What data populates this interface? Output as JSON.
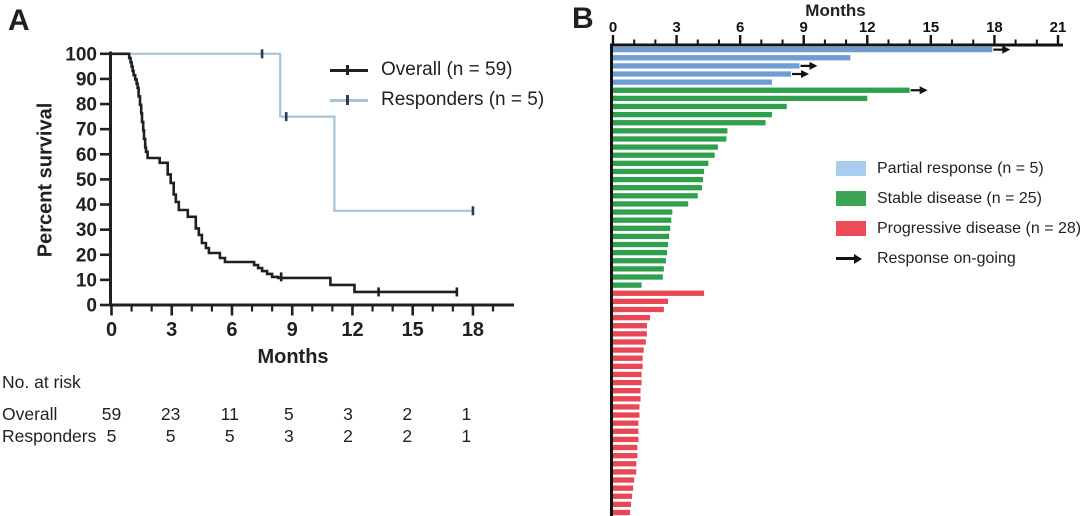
{
  "panels": {
    "a_label": "A",
    "b_label": "B"
  },
  "chart_data": [
    {
      "panel": "A",
      "type": "line",
      "subtype": "kaplan_meier_step",
      "title": "",
      "xlabel": "Months",
      "ylabel": "Percent survival",
      "xlim": [
        0,
        20
      ],
      "ylim": [
        0,
        100
      ],
      "xticks": [
        0,
        3,
        6,
        9,
        12,
        15,
        18
      ],
      "yticks": [
        0,
        10,
        20,
        30,
        40,
        50,
        60,
        70,
        80,
        90,
        100
      ],
      "minor_x_tick_step": 1,
      "grid": false,
      "legend_position": "inside-upper-right",
      "series": [
        {
          "name": "Overall (n = 59)",
          "color": "#231f20",
          "censor_color": "#231f20",
          "steps": [
            [
              0,
              100
            ],
            [
              0.88,
              100
            ],
            [
              0.88,
              98.3
            ],
            [
              0.95,
              98.3
            ],
            [
              0.95,
              96.6
            ],
            [
              1.0,
              96.6
            ],
            [
              1.0,
              94.9
            ],
            [
              1.05,
              94.9
            ],
            [
              1.05,
              93.2
            ],
            [
              1.1,
              93.2
            ],
            [
              1.1,
              91.5
            ],
            [
              1.18,
              91.5
            ],
            [
              1.18,
              89.8
            ],
            [
              1.25,
              89.8
            ],
            [
              1.25,
              88.1
            ],
            [
              1.3,
              88.1
            ],
            [
              1.3,
              86.4
            ],
            [
              1.35,
              86.4
            ],
            [
              1.35,
              83.1
            ],
            [
              1.42,
              83.1
            ],
            [
              1.42,
              79.7
            ],
            [
              1.48,
              79.7
            ],
            [
              1.48,
              76.3
            ],
            [
              1.52,
              76.3
            ],
            [
              1.52,
              72.9
            ],
            [
              1.58,
              72.9
            ],
            [
              1.58,
              69.5
            ],
            [
              1.62,
              69.5
            ],
            [
              1.62,
              66.1
            ],
            [
              1.68,
              66.1
            ],
            [
              1.68,
              62.7
            ],
            [
              1.72,
              62.7
            ],
            [
              1.72,
              61.0
            ],
            [
              1.8,
              61.0
            ],
            [
              1.8,
              58.5
            ],
            [
              2.4,
              58.5
            ],
            [
              2.4,
              56.6
            ],
            [
              2.8,
              56.6
            ],
            [
              2.8,
              52.0
            ],
            [
              2.95,
              52.0
            ],
            [
              2.95,
              48.6
            ],
            [
              3.1,
              48.6
            ],
            [
              3.1,
              44.0
            ],
            [
              3.2,
              44.0
            ],
            [
              3.2,
              41.0
            ],
            [
              3.35,
              41.0
            ],
            [
              3.35,
              37.8
            ],
            [
              3.8,
              37.8
            ],
            [
              3.8,
              35.1
            ],
            [
              4.2,
              35.1
            ],
            [
              4.2,
              30.5
            ],
            [
              4.35,
              30.5
            ],
            [
              4.35,
              27.9
            ],
            [
              4.5,
              27.9
            ],
            [
              4.5,
              24.7
            ],
            [
              4.7,
              24.7
            ],
            [
              4.7,
              22.7
            ],
            [
              4.85,
              22.7
            ],
            [
              4.85,
              20.7
            ],
            [
              5.4,
              20.7
            ],
            [
              5.4,
              18.7
            ],
            [
              5.65,
              18.7
            ],
            [
              5.65,
              17.1
            ],
            [
              7.1,
              17.1
            ],
            [
              7.1,
              15.9
            ],
            [
              7.3,
              15.9
            ],
            [
              7.3,
              14.7
            ],
            [
              7.5,
              14.7
            ],
            [
              7.5,
              13.5
            ],
            [
              7.75,
              13.5
            ],
            [
              7.75,
              12.4
            ],
            [
              8.0,
              12.4
            ],
            [
              8.0,
              11.2
            ],
            [
              8.3,
              11.2
            ],
            [
              8.3,
              10.8
            ],
            [
              10.9,
              10.8
            ],
            [
              10.9,
              8.0
            ],
            [
              12.1,
              8.0
            ],
            [
              12.1,
              5.2
            ],
            [
              17.2,
              5.2
            ]
          ],
          "censor_marks": [
            [
              8.45,
              11.2
            ],
            [
              13.3,
              5.2
            ],
            [
              17.2,
              5.2
            ]
          ]
        },
        {
          "name": "Responders (n = 5)",
          "color": "#a5c4db",
          "censor_color": "#2e3a52",
          "steps": [
            [
              0,
              100
            ],
            [
              8.4,
              100
            ],
            [
              8.4,
              75
            ],
            [
              11.1,
              75
            ],
            [
              11.1,
              37.5
            ],
            [
              18,
              37.5
            ]
          ],
          "censor_marks": [
            [
              7.5,
              100
            ],
            [
              8.7,
              75
            ],
            [
              18,
              37.5
            ]
          ]
        }
      ],
      "risk_table": {
        "title": "No. at risk",
        "timepoints": [
          0,
          3,
          6,
          9,
          12,
          15,
          18
        ],
        "rows": [
          {
            "label": "Overall",
            "values": [
              "59",
              "23",
              "11",
              "5",
              "3",
              "2",
              "1"
            ]
          },
          {
            "label": "Responders",
            "values": [
              "5",
              "5",
              "5",
              "3",
              "2",
              "2",
              "1"
            ]
          }
        ]
      }
    },
    {
      "panel": "B",
      "type": "bar",
      "subtype": "swimmer_horizontal",
      "title": "",
      "xlabel": "Months",
      "axis_side": "top",
      "xlim": [
        0,
        21
      ],
      "xticks": [
        0,
        3,
        6,
        9,
        12,
        15,
        18,
        21
      ],
      "minor_x_tick_step": 1,
      "ongoing_label": "Response on-going",
      "arrow_color": "#121212",
      "groups": [
        {
          "name": "Partial response (n = 5)",
          "bar_color": "#6f9cd2",
          "legend_color": "#a9cdee",
          "bars": [
            {
              "months": 17.9,
              "ongoing": true
            },
            {
              "months": 11.2,
              "ongoing": false
            },
            {
              "months": 8.8,
              "ongoing": true
            },
            {
              "months": 8.4,
              "ongoing": true
            },
            {
              "months": 7.5,
              "ongoing": false
            }
          ]
        },
        {
          "name": "Stable disease (n = 25)",
          "bar_color": "#2ea04c",
          "legend_color": "#3aa655",
          "bars": [
            {
              "months": 14.0,
              "ongoing": true
            },
            {
              "months": 12.0,
              "ongoing": false
            },
            {
              "months": 8.2,
              "ongoing": false
            },
            {
              "months": 7.5,
              "ongoing": false
            },
            {
              "months": 7.2,
              "ongoing": false
            },
            {
              "months": 5.4,
              "ongoing": false
            },
            {
              "months": 5.35,
              "ongoing": false
            },
            {
              "months": 4.95,
              "ongoing": false
            },
            {
              "months": 4.8,
              "ongoing": false
            },
            {
              "months": 4.5,
              "ongoing": false
            },
            {
              "months": 4.3,
              "ongoing": false
            },
            {
              "months": 4.25,
              "ongoing": false
            },
            {
              "months": 4.2,
              "ongoing": false
            },
            {
              "months": 4.0,
              "ongoing": false
            },
            {
              "months": 3.55,
              "ongoing": false
            },
            {
              "months": 2.8,
              "ongoing": false
            },
            {
              "months": 2.75,
              "ongoing": false
            },
            {
              "months": 2.7,
              "ongoing": false
            },
            {
              "months": 2.65,
              "ongoing": false
            },
            {
              "months": 2.6,
              "ongoing": false
            },
            {
              "months": 2.55,
              "ongoing": false
            },
            {
              "months": 2.5,
              "ongoing": false
            },
            {
              "months": 2.4,
              "ongoing": false
            },
            {
              "months": 2.35,
              "ongoing": false
            },
            {
              "months": 1.35,
              "ongoing": false
            }
          ]
        },
        {
          "name": "Progressive disease (n = 28)",
          "bar_color": "#e84753",
          "legend_color": "#ed4b57",
          "bars": [
            {
              "months": 4.3,
              "ongoing": false
            },
            {
              "months": 2.6,
              "ongoing": false
            },
            {
              "months": 2.4,
              "ongoing": false
            },
            {
              "months": 1.75,
              "ongoing": false
            },
            {
              "months": 1.6,
              "ongoing": false
            },
            {
              "months": 1.6,
              "ongoing": false
            },
            {
              "months": 1.55,
              "ongoing": false
            },
            {
              "months": 1.45,
              "ongoing": false
            },
            {
              "months": 1.4,
              "ongoing": false
            },
            {
              "months": 1.4,
              "ongoing": false
            },
            {
              "months": 1.35,
              "ongoing": false
            },
            {
              "months": 1.35,
              "ongoing": false
            },
            {
              "months": 1.3,
              "ongoing": false
            },
            {
              "months": 1.3,
              "ongoing": false
            },
            {
              "months": 1.25,
              "ongoing": false
            },
            {
              "months": 1.25,
              "ongoing": false
            },
            {
              "months": 1.2,
              "ongoing": false
            },
            {
              "months": 1.2,
              "ongoing": false
            },
            {
              "months": 1.2,
              "ongoing": false
            },
            {
              "months": 1.15,
              "ongoing": false
            },
            {
              "months": 1.15,
              "ongoing": false
            },
            {
              "months": 1.1,
              "ongoing": false
            },
            {
              "months": 1.1,
              "ongoing": false
            },
            {
              "months": 1.0,
              "ongoing": false
            },
            {
              "months": 0.95,
              "ongoing": false
            },
            {
              "months": 0.9,
              "ongoing": false
            },
            {
              "months": 0.85,
              "ongoing": false
            },
            {
              "months": 0.8,
              "ongoing": false
            }
          ]
        }
      ]
    }
  ]
}
